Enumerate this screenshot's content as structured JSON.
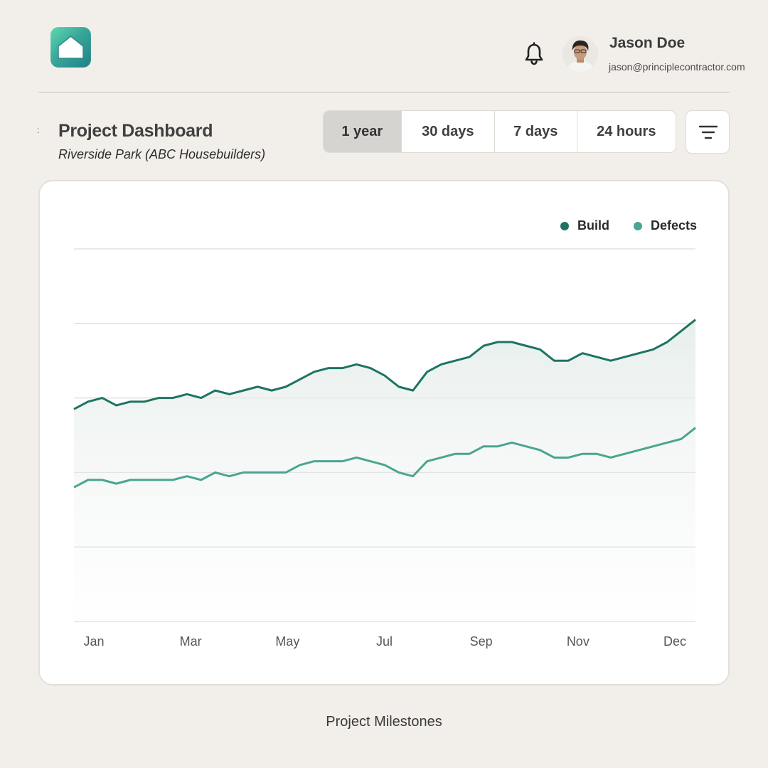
{
  "header": {
    "logo_icon": "home-icon",
    "notifications_icon": "bell-icon",
    "user": {
      "name": "Jason Doe",
      "email": "jason@principlecontractor.com"
    }
  },
  "page": {
    "side_mark": ":",
    "title": "Project Dashboard",
    "subtitle": "Riverside Park (ABC Housebuilders)"
  },
  "range_tabs": [
    {
      "label": "1 year",
      "active": true
    },
    {
      "label": "30 days",
      "active": false
    },
    {
      "label": "7 days",
      "active": false
    },
    {
      "label": "24 hours",
      "active": false
    }
  ],
  "filter_icon": "filter-icon",
  "chart_data": {
    "type": "area",
    "title": "",
    "xlabel": "",
    "ylabel": "",
    "grid": true,
    "legend_position": "top-right",
    "x_ticks": [
      "Jan",
      "Mar",
      "May",
      "Jul",
      "Sep",
      "Nov",
      "Dec"
    ],
    "x_range": [
      0,
      43
    ],
    "ylim": [
      0,
      100
    ],
    "series": [
      {
        "name": "Build",
        "color": "#1d7463",
        "values": [
          57,
          59,
          60,
          58,
          59,
          59,
          60,
          60,
          61,
          60,
          62,
          61,
          62,
          63,
          62,
          63,
          65,
          67,
          68,
          68,
          69,
          68,
          66,
          63,
          62,
          67,
          69,
          70,
          71,
          74,
          75,
          75,
          74,
          73,
          70,
          70,
          72,
          71,
          70,
          71,
          72,
          73,
          75,
          78,
          81
        ]
      },
      {
        "name": "Defects",
        "color": "#4aa58f",
        "values": [
          36,
          38,
          38,
          37,
          38,
          38,
          38,
          38,
          39,
          38,
          40,
          39,
          40,
          40,
          40,
          40,
          42,
          43,
          43,
          43,
          44,
          43,
          42,
          40,
          39,
          43,
          44,
          45,
          45,
          47,
          47,
          48,
          47,
          46,
          44,
          44,
          45,
          45,
          44,
          45,
          46,
          47,
          48,
          49,
          52
        ]
      }
    ]
  },
  "caption": "Project Milestones"
}
